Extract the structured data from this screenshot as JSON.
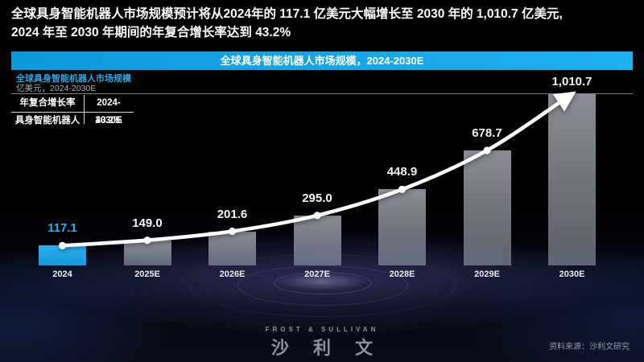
{
  "headline": {
    "line1": "全球具身智能机器人市场规模预计将从2024年的 117.1 亿美元大幅增长至 2030 年的 1,010.7 亿美元,",
    "line2": "2024 年至 2030 年期间的年复合增长率达到 43.2%"
  },
  "banner": {
    "title": "全球具身智能机器人市场规模，2024-2030E"
  },
  "chart_header": {
    "title": "全球具身智能机器人市场规模",
    "unit": "亿美元，2024-2030E"
  },
  "cagr_table": {
    "header": [
      "年复合增长率",
      "2024-2030E"
    ],
    "rows": [
      [
        "具身智能机器人",
        "43.2%"
      ]
    ]
  },
  "chart_data": {
    "type": "bar",
    "title": "全球具身智能机器人市场规模，2024-2030E",
    "ylabel": "亿美元",
    "categories": [
      "2024",
      "2025E",
      "2026E",
      "2027E",
      "2028E",
      "2029E",
      "2030E"
    ],
    "values": [
      117.1,
      149.0,
      201.6,
      295.0,
      448.9,
      678.7,
      1010.7
    ],
    "value_labels": [
      "117.1",
      "149.0",
      "201.6",
      "295.0",
      "448.9",
      "678.7",
      "1,010.7"
    ],
    "ylim": [
      0,
      1010.7
    ],
    "grid": "single horizontal line at max value",
    "legend": "none",
    "highlight_index": 0,
    "highlight_color": "#1fa9e8",
    "bar_color": "rgba(198,205,215,0.60)",
    "trend_line": {
      "type": "curved arrow through bar tops",
      "color": "#ffffff",
      "cagr": "43.2%"
    }
  },
  "footer": {
    "logo_en": "FROST & SULLIVAN",
    "logo_cn": "沙 利 文",
    "source": "资料来源：沙利文研究"
  },
  "colors": {
    "accent": "#1fa9e8",
    "background": "#000000",
    "banner": "#14a5e8"
  }
}
